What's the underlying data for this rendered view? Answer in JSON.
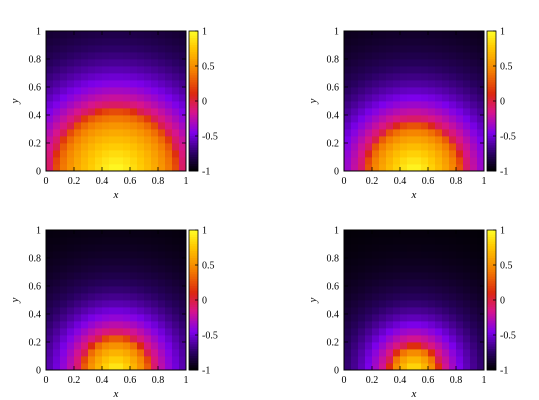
{
  "chart_data": [
    {
      "type": "heatmap",
      "panel": "top-left",
      "title": "",
      "xlabel": "x",
      "ylabel": "y",
      "xlim": [
        0,
        1
      ],
      "ylim": [
        0,
        1
      ],
      "x_ticks": [
        "0",
        "0.2",
        "0.4",
        "0.6",
        "0.8",
        "1"
      ],
      "y_ticks": [
        "0",
        "0.2",
        "0.4",
        "0.6",
        "0.8",
        "1"
      ],
      "colorbar": {
        "range": [
          -1,
          1
        ],
        "ticks": [
          "1",
          "0.5",
          "0",
          "-0.5",
          "-1"
        ]
      },
      "grid_size": [
        20,
        20
      ],
      "field": {
        "center_x": 0.5,
        "center_y": 0.0,
        "zero_radius": 0.45,
        "peak": 1.0,
        "floor": -1.0
      }
    },
    {
      "type": "heatmap",
      "panel": "top-right",
      "title": "",
      "xlabel": "x",
      "ylabel": "y",
      "xlim": [
        0,
        1
      ],
      "ylim": [
        0,
        1
      ],
      "x_ticks": [
        "0",
        "0.2",
        "0.4",
        "0.6",
        "0.8",
        "1"
      ],
      "y_ticks": [
        "0",
        "0.2",
        "0.4",
        "0.6",
        "0.8",
        "1"
      ],
      "colorbar": {
        "range": [
          -1,
          1
        ],
        "ticks": [
          "1",
          "0.5",
          "0",
          "-0.5",
          "-1"
        ]
      },
      "grid_size": [
        20,
        20
      ],
      "field": {
        "center_x": 0.5,
        "center_y": 0.0,
        "zero_radius": 0.35,
        "peak": 1.0,
        "floor": -1.0
      }
    },
    {
      "type": "heatmap",
      "panel": "bottom-left",
      "title": "",
      "xlabel": "x",
      "ylabel": "y",
      "xlim": [
        0,
        1
      ],
      "ylim": [
        0,
        1
      ],
      "x_ticks": [
        "0",
        "0.2",
        "0.4",
        "0.6",
        "0.8",
        "1"
      ],
      "y_ticks": [
        "0",
        "0.2",
        "0.4",
        "0.6",
        "0.8",
        "1"
      ],
      "colorbar": {
        "range": [
          -1,
          1
        ],
        "ticks": [
          "1",
          "0.5",
          "0",
          "-0.5",
          "-1"
        ]
      },
      "grid_size": [
        20,
        20
      ],
      "field": {
        "center_x": 0.5,
        "center_y": 0.0,
        "zero_radius": 0.25,
        "peak": 0.95,
        "floor": -1.0
      }
    },
    {
      "type": "heatmap",
      "panel": "bottom-right",
      "title": "",
      "xlabel": "x",
      "ylabel": "y",
      "xlim": [
        0,
        1
      ],
      "ylim": [
        0,
        1
      ],
      "x_ticks": [
        "0",
        "0.2",
        "0.4",
        "0.6",
        "0.8",
        "1"
      ],
      "y_ticks": [
        "0",
        "0.2",
        "0.4",
        "0.6",
        "0.8",
        "1"
      ],
      "colorbar": {
        "range": [
          -1,
          1
        ],
        "ticks": [
          "1",
          "0.5",
          "0",
          "-0.5",
          "-1"
        ]
      },
      "grid_size": [
        20,
        20
      ],
      "field": {
        "center_x": 0.5,
        "center_y": 0.0,
        "zero_radius": 0.18,
        "peak": 0.9,
        "floor": -1.0
      }
    }
  ]
}
